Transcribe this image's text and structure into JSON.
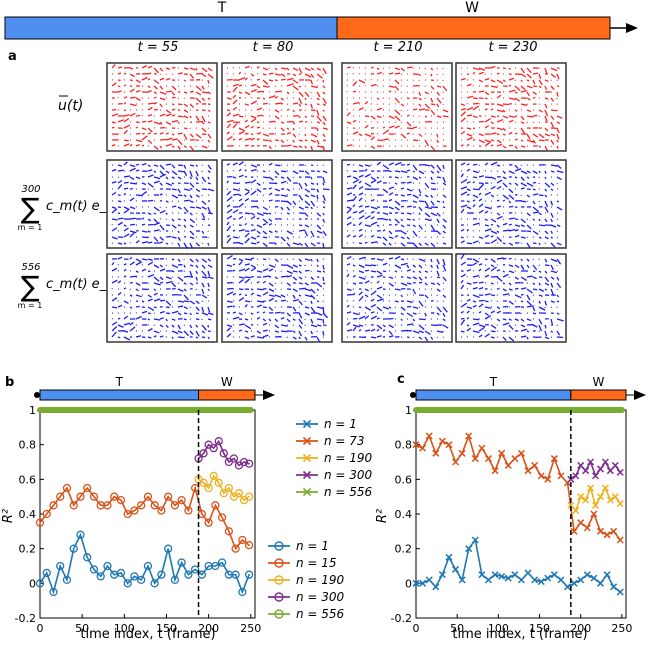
{
  "colors": {
    "train": "#4e8ff0",
    "test": "#ff6a1a",
    "red_field": "#ff2020",
    "blue_field": "#1a1aff",
    "n1": "#1f77b4",
    "n_mid": "#d95319",
    "n190": "#edb120",
    "n300": "#7e2f8e",
    "n556": "#77ac30"
  },
  "top_bar": {
    "left_label": "T",
    "right_label": "W"
  },
  "panel_a": {
    "label": "a",
    "columns": [
      "t = 55",
      "t = 80",
      "t = 210",
      "t = 230"
    ],
    "rows": [
      {
        "label": "u(t)",
        "color": "red"
      },
      {
        "label": "c_m(t) e_m",
        "sum_upper": "300",
        "sum_lower": "m = 1",
        "color": "blue"
      },
      {
        "label": "c_m(t) e_m",
        "sum_upper": "556",
        "sum_lower": "m = 1",
        "color": "blue"
      }
    ]
  },
  "chart_data": [
    {
      "panel": "b",
      "type": "line",
      "bar_labels": [
        "T",
        "W"
      ],
      "xlabel": "time index, t (frame)",
      "ylabel": "R²",
      "xlim": [
        0,
        255
      ],
      "ylim": [
        -0.2,
        1.0
      ],
      "xticks": [
        "0",
        "50",
        "100",
        "150",
        "200",
        "250"
      ],
      "yticks": [
        "-0.2",
        "0",
        "0.2",
        "0.4",
        "0.6",
        "0.8",
        "1"
      ],
      "split_at": 188,
      "marker": "o",
      "legend": [
        "n = 1",
        "n = 15",
        "n = 190",
        "n = 300",
        "n = 556"
      ],
      "series": [
        {
          "name": "n = 1",
          "color_key": "n1",
          "x": [
            0,
            8,
            16,
            24,
            32,
            40,
            48,
            56,
            64,
            72,
            80,
            88,
            96,
            104,
            112,
            120,
            128,
            136,
            144,
            152,
            160,
            168,
            176,
            184,
            192,
            200,
            208,
            216,
            224,
            232,
            240,
            248
          ],
          "values": [
            0.0,
            0.06,
            -0.05,
            0.1,
            0.02,
            0.2,
            0.28,
            0.15,
            0.08,
            0.04,
            0.1,
            0.05,
            0.06,
            0.0,
            0.04,
            0.02,
            0.1,
            0.0,
            0.05,
            0.2,
            0.02,
            0.12,
            0.05,
            0.08,
            0.05,
            0.1,
            0.1,
            0.12,
            0.05,
            0.05,
            -0.05,
            0.05
          ]
        },
        {
          "name": "n = 15",
          "color_key": "n_mid",
          "x": [
            0,
            8,
            16,
            24,
            32,
            40,
            48,
            56,
            64,
            72,
            80,
            88,
            96,
            104,
            112,
            120,
            128,
            136,
            144,
            152,
            160,
            168,
            176,
            184,
            192,
            200,
            208,
            216,
            224,
            232,
            240,
            248
          ],
          "values": [
            0.35,
            0.4,
            0.45,
            0.5,
            0.55,
            0.45,
            0.5,
            0.55,
            0.5,
            0.45,
            0.45,
            0.5,
            0.48,
            0.4,
            0.42,
            0.45,
            0.5,
            0.45,
            0.42,
            0.5,
            0.45,
            0.48,
            0.42,
            0.55,
            0.4,
            0.35,
            0.45,
            0.38,
            0.3,
            0.2,
            0.25,
            0.22
          ]
        },
        {
          "name": "n = 190",
          "color_key": "n190",
          "x": [
            188,
            194,
            200,
            206,
            212,
            218,
            224,
            230,
            236,
            242,
            248
          ],
          "values": [
            0.6,
            0.58,
            0.55,
            0.62,
            0.58,
            0.52,
            0.55,
            0.5,
            0.52,
            0.48,
            0.5
          ]
        },
        {
          "name": "n = 300",
          "color_key": "n300",
          "x": [
            188,
            194,
            200,
            206,
            212,
            218,
            224,
            230,
            236,
            242,
            248
          ],
          "values": [
            0.72,
            0.75,
            0.8,
            0.78,
            0.82,
            0.75,
            0.7,
            0.72,
            0.68,
            0.7,
            0.69
          ]
        },
        {
          "name": "n = 556",
          "color_key": "n556",
          "x": [
            0,
            20,
            40,
            60,
            80,
            100,
            120,
            140,
            160,
            180,
            200,
            220,
            240,
            250
          ],
          "values": [
            1,
            1,
            1,
            1,
            1,
            1,
            1,
            1,
            1,
            1,
            1,
            1,
            1,
            1
          ]
        }
      ]
    },
    {
      "panel": "c",
      "type": "line",
      "bar_labels": [
        "T",
        "W"
      ],
      "xlabel": "time index, t (frame)",
      "ylabel": "R²",
      "xlim": [
        0,
        255
      ],
      "ylim": [
        -0.2,
        1.0
      ],
      "xticks": [
        "0",
        "50",
        "100",
        "150",
        "200",
        "250"
      ],
      "yticks": [
        "-0.2",
        "0",
        "0.2",
        "0.4",
        "0.6",
        "0.8",
        "1"
      ],
      "split_at": 188,
      "marker": "x",
      "legend": [
        "n = 1",
        "n = 73",
        "n = 190",
        "n = 300",
        "n = 556"
      ],
      "series": [
        {
          "name": "n = 1",
          "color_key": "n1",
          "x": [
            0,
            8,
            16,
            24,
            32,
            40,
            48,
            56,
            64,
            72,
            80,
            88,
            96,
            104,
            112,
            120,
            128,
            136,
            144,
            152,
            160,
            168,
            176,
            184,
            192,
            200,
            208,
            216,
            224,
            232,
            240,
            248
          ],
          "values": [
            0.0,
            0.0,
            0.02,
            -0.02,
            0.05,
            0.15,
            0.08,
            0.02,
            0.2,
            0.25,
            0.05,
            0.02,
            0.05,
            0.04,
            0.03,
            0.05,
            0.02,
            0.06,
            0.02,
            0.01,
            0.03,
            0.05,
            0.02,
            -0.02,
            0.0,
            0.02,
            0.05,
            0.03,
            0.0,
            0.05,
            -0.02,
            -0.05
          ]
        },
        {
          "name": "n = 73",
          "color_key": "n_mid",
          "x": [
            0,
            8,
            16,
            24,
            32,
            40,
            48,
            56,
            64,
            72,
            80,
            88,
            96,
            104,
            112,
            120,
            128,
            136,
            144,
            152,
            160,
            168,
            176,
            184,
            192,
            200,
            208,
            216,
            224,
            232,
            240,
            248
          ],
          "values": [
            0.8,
            0.78,
            0.85,
            0.75,
            0.82,
            0.8,
            0.7,
            0.75,
            0.85,
            0.72,
            0.78,
            0.72,
            0.65,
            0.75,
            0.68,
            0.72,
            0.75,
            0.65,
            0.68,
            0.62,
            0.6,
            0.72,
            0.62,
            0.58,
            0.3,
            0.35,
            0.32,
            0.4,
            0.3,
            0.28,
            0.3,
            0.25
          ]
        },
        {
          "name": "n = 190",
          "color_key": "n190",
          "x": [
            188,
            194,
            200,
            206,
            212,
            218,
            224,
            230,
            236,
            242,
            248
          ],
          "values": [
            0.45,
            0.42,
            0.5,
            0.48,
            0.55,
            0.45,
            0.5,
            0.55,
            0.48,
            0.5,
            0.46
          ]
        },
        {
          "name": "n = 300",
          "color_key": "n300",
          "x": [
            188,
            194,
            200,
            206,
            212,
            218,
            224,
            230,
            236,
            242,
            248
          ],
          "values": [
            0.6,
            0.62,
            0.68,
            0.65,
            0.7,
            0.62,
            0.66,
            0.7,
            0.65,
            0.68,
            0.64
          ]
        },
        {
          "name": "n = 556",
          "color_key": "n556",
          "x": [
            0,
            20,
            40,
            60,
            80,
            100,
            120,
            140,
            160,
            180,
            200,
            220,
            240,
            250
          ],
          "values": [
            1,
            1,
            1,
            1,
            1,
            1,
            1,
            1,
            1,
            1,
            1,
            1,
            1,
            1
          ]
        }
      ]
    }
  ]
}
